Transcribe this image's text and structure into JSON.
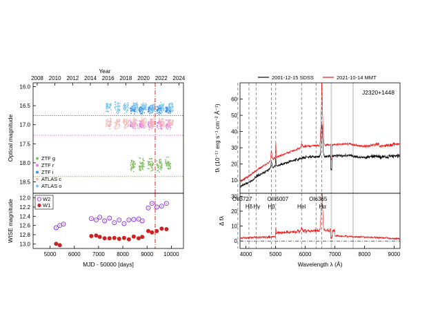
{
  "chart_data": [
    {
      "type": "scatter",
      "panel": "optical light curve",
      "top_axis": {
        "label": "Year",
        "ticks": [
          "2008",
          "2010",
          "2012",
          "2014",
          "2016",
          "2018",
          "2020",
          "2022",
          "2024"
        ]
      },
      "ylabel": "Optical magnitude",
      "ylim": [
        18.8,
        15.9
      ],
      "yticks": [
        "16.0",
        "16.5",
        "17.0",
        "17.5",
        "18.0",
        "18.5"
      ],
      "xlim": [
        4300,
        10500
      ],
      "event_mjd": 9500,
      "series": [
        {
          "name": "ZTF g",
          "color": "#7fbf5f",
          "mjd_range": [
            8300,
            10100
          ],
          "mag": 18.05,
          "scatter": 0.16,
          "ref_level": 18.36
        },
        {
          "name": "ZTF r",
          "color": "#e57fe5",
          "mjd_range": [
            8300,
            10100
          ],
          "mag": 17.0,
          "scatter": 0.11,
          "ref_level": 17.28
        },
        {
          "name": "ZTF i",
          "color": "#3f8fe6",
          "mjd_range": [
            8300,
            10100
          ],
          "mag": 16.6,
          "scatter": 0.1,
          "ref_level": 16.76
        },
        {
          "name": "ATLAS c",
          "color": "#f5b8b8",
          "mjd_range": [
            7300,
            10100
          ],
          "mag": 16.95,
          "scatter": 0.14
        },
        {
          "name": "ATLAS o",
          "color": "#7ec8f0",
          "mjd_range": [
            7300,
            10100
          ],
          "mag": 16.55,
          "scatter": 0.14
        }
      ]
    },
    {
      "type": "scatter",
      "panel": "WISE light curve",
      "xlabel": "MJD - 50000 [days]",
      "ylabel": "WISE magnitude",
      "xlim": [
        4300,
        10500
      ],
      "xticks": [
        5000,
        6000,
        7000,
        8000,
        9000,
        10000
      ],
      "ylim": [
        13.1,
        11.9
      ],
      "yticks": [
        "12.0",
        "12.2",
        "12.4",
        "12.6",
        "12.8",
        "13.0"
      ],
      "series": [
        {
          "name": "W2",
          "color": "#8a2be2",
          "x": [
            5250,
            5400,
            5550,
            6700,
            6900,
            7050,
            7250,
            7450,
            7650,
            7850,
            8050,
            8250,
            8450,
            8650,
            8800,
            9050,
            9200,
            9400,
            9600,
            9800
          ],
          "y": [
            12.65,
            12.6,
            12.57,
            12.45,
            12.48,
            12.42,
            12.5,
            12.44,
            12.54,
            12.48,
            12.56,
            12.48,
            12.47,
            12.46,
            12.5,
            12.22,
            12.12,
            12.2,
            12.18,
            12.12
          ]
        },
        {
          "name": "W1",
          "color": "#cc2222",
          "x": [
            5250,
            5400,
            6700,
            6900,
            7050,
            7250,
            7450,
            7650,
            7850,
            8050,
            8250,
            8450,
            8650,
            8800,
            9050,
            9200,
            9400,
            9600,
            9800
          ],
          "y": [
            13.0,
            13.03,
            12.83,
            12.82,
            12.85,
            12.88,
            12.88,
            12.87,
            12.89,
            12.87,
            12.9,
            12.84,
            12.88,
            12.85,
            12.72,
            12.75,
            12.72,
            12.67,
            12.68
          ]
        }
      ]
    },
    {
      "type": "line",
      "panel": "optical spectra",
      "object": "J2320+1448",
      "ylabel": "fλ (10⁻¹⁷ erg s⁻¹ cm⁻² Å⁻¹)",
      "xlim": [
        3800,
        9200
      ],
      "ylim": [
        2,
        70
      ],
      "yticks": [
        10,
        20,
        30,
        40,
        50,
        60
      ],
      "series": [
        {
          "name": "2001-12-15 SDSS",
          "color": "#000000"
        },
        {
          "name": "2021-10-14 MMT",
          "color": "#ee1111"
        }
      ],
      "line_markers": [
        {
          "label": "OII3727",
          "wave": 3727
        },
        {
          "label": "Hδ",
          "wave": 4102
        },
        {
          "label": "Hγ",
          "wave": 4341
        },
        {
          "label": "Hβ",
          "wave": 4861
        },
        {
          "label": "OIII5007",
          "wave": 5007
        },
        {
          "label": "HeI",
          "wave": 5876
        },
        {
          "label": "OI6365",
          "wave": 6365
        },
        {
          "label": "Hα",
          "wave": 6563
        }
      ]
    },
    {
      "type": "line",
      "panel": "difference spectrum",
      "xlabel": "Wavelength λ (Å)",
      "ylabel": "Δ fλ",
      "xlim": [
        3800,
        9200
      ],
      "xticks": [
        4000,
        5000,
        6000,
        7000,
        8000,
        9000
      ],
      "ylim": [
        -5,
        32
      ],
      "yticks": [
        0,
        10,
        20,
        30
      ]
    }
  ]
}
